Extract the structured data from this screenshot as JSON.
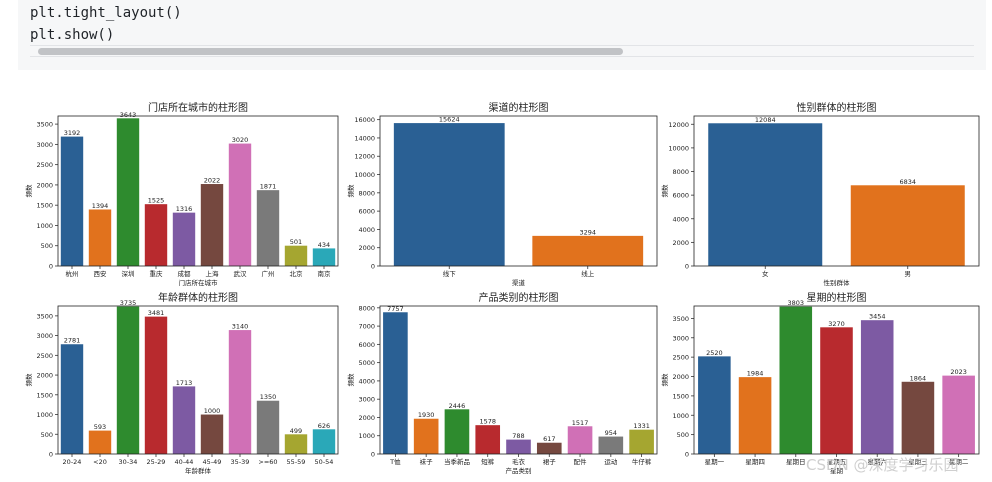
{
  "code": {
    "lines": [
      "plt.tight_layout()",
      "plt.show()"
    ]
  },
  "watermark": "CSDN @深度学习乐园",
  "chart_data": [
    {
      "type": "bar",
      "title": "门店所在城市的柱形图",
      "xlabel": "门店所在城市",
      "ylabel": "频数",
      "categories": [
        "杭州",
        "西安",
        "深圳",
        "重庆",
        "成都",
        "上海",
        "武汉",
        "广州",
        "北京",
        "南京"
      ],
      "values": [
        3192,
        1394,
        3643,
        1525,
        1316,
        2022,
        3020,
        1871,
        501,
        434
      ],
      "ylim": [
        0,
        3700
      ],
      "yticks": [
        0,
        500,
        1000,
        1500,
        2000,
        2500,
        3000,
        3500
      ],
      "colors": [
        "#2a6094",
        "#e1721d",
        "#2e8b2e",
        "#b82a2e",
        "#7d5aa3",
        "#75483f",
        "#d070b6",
        "#7a7a7a",
        "#a5a630",
        "#2aa8b8"
      ]
    },
    {
      "type": "bar",
      "title": "渠道的柱形图",
      "xlabel": "渠道",
      "ylabel": "频数",
      "categories": [
        "线下",
        "线上"
      ],
      "values": [
        15624,
        3294
      ],
      "ylim": [
        0,
        16400
      ],
      "yticks": [
        0,
        2000,
        4000,
        6000,
        8000,
        10000,
        12000,
        14000,
        16000
      ],
      "colors": [
        "#2a6094",
        "#e1721d"
      ]
    },
    {
      "type": "bar",
      "title": "性别群体的柱形图",
      "xlabel": "性别群体",
      "ylabel": "频数",
      "categories": [
        "女",
        "男"
      ],
      "values": [
        12084,
        6834
      ],
      "ylim": [
        0,
        12700
      ],
      "yticks": [
        0,
        2000,
        4000,
        6000,
        8000,
        10000,
        12000
      ],
      "colors": [
        "#2a6094",
        "#e1721d"
      ]
    },
    {
      "type": "bar",
      "title": "年龄群体的柱形图",
      "xlabel": "年龄群体",
      "ylabel": "频数",
      "categories": [
        "20-24",
        "<20",
        "30-34",
        "25-29",
        "40-44",
        "45-49",
        "35-39",
        ">=60",
        "55-59",
        "50-54"
      ],
      "values": [
        2781,
        593,
        3735,
        3481,
        1713,
        1000,
        3140,
        1350,
        499,
        626
      ],
      "ylim": [
        0,
        3750
      ],
      "yticks": [
        0,
        500,
        1000,
        1500,
        2000,
        2500,
        3000,
        3500
      ],
      "colors": [
        "#2a6094",
        "#e1721d",
        "#2e8b2e",
        "#b82a2e",
        "#7d5aa3",
        "#75483f",
        "#d070b6",
        "#7a7a7a",
        "#a5a630",
        "#2aa8b8"
      ]
    },
    {
      "type": "bar",
      "title": "产品类别的柱形图",
      "xlabel": "产品类别",
      "ylabel": "频数",
      "categories": [
        "T恤",
        "袜子",
        "当季新品",
        "短裤",
        "毛衣",
        "裙子",
        "配件",
        "运动",
        "牛仔裤"
      ],
      "values": [
        7757,
        1930,
        2446,
        1578,
        788,
        617,
        1517,
        954,
        1331
      ],
      "ylim": [
        0,
        8100
      ],
      "yticks": [
        0,
        1000,
        2000,
        3000,
        4000,
        5000,
        6000,
        7000,
        8000
      ],
      "colors": [
        "#2a6094",
        "#e1721d",
        "#2e8b2e",
        "#b82a2e",
        "#7d5aa3",
        "#75483f",
        "#d070b6",
        "#7a7a7a",
        "#a5a630"
      ]
    },
    {
      "type": "bar",
      "title": "星期的柱形图",
      "xlabel": "星期",
      "ylabel": "频数",
      "categories": [
        "星期一",
        "星期四",
        "星期日",
        "星期五",
        "星期六",
        "星期三",
        "星期二"
      ],
      "values": [
        2520,
        1984,
        3803,
        3270,
        3454,
        1864,
        2023
      ],
      "ylim": [
        0,
        3820
      ],
      "yticks": [
        0,
        500,
        1000,
        1500,
        2000,
        2500,
        3000,
        3500
      ],
      "colors": [
        "#2a6094",
        "#e1721d",
        "#2e8b2e",
        "#b82a2e",
        "#7d5aa3",
        "#75483f",
        "#d070b6"
      ]
    }
  ]
}
